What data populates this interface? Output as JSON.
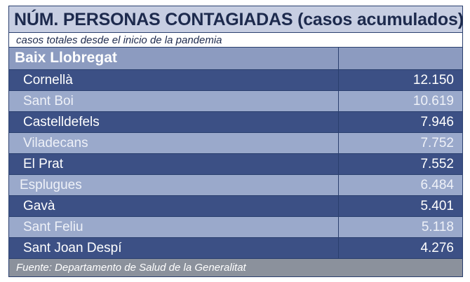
{
  "header": {
    "title": "NÚM. PERSONAS CONTAGIADAS (casos acumulados)",
    "subtitle": "casos totales desde el inicio de la pandemia"
  },
  "region": {
    "name": "Baix Llobregat"
  },
  "footer": {
    "source": "Fuente: Departamento de Salud de la Generalitat"
  },
  "colors": {
    "dark_row": "#3c5085",
    "light_row": "#9aa9cb",
    "region_row": "#8c9bc0",
    "title_bg": "#c7cee2",
    "footer_bg": "#8b919c",
    "text_dark": "#1d2a4d"
  },
  "chart_data": {
    "type": "table",
    "title": "NÚM. PERSONAS CONTAGIADAS (casos acumulados)",
    "subtitle": "casos totales desde el inicio de la pandemia",
    "group": "Baix Llobregat",
    "categories": [
      "Cornellà",
      "Sant Boi",
      "Castelldefels",
      "Viladecans",
      "El Prat",
      "Esplugues",
      "Gavà",
      "Sant Feliu",
      "Sant Joan Despí"
    ],
    "values": [
      12150,
      10619,
      7946,
      7752,
      7552,
      6484,
      5401,
      5118,
      4276
    ],
    "value_labels": [
      "12.150",
      "10.619",
      "7.946",
      "7.752",
      "7.552",
      "6.484",
      "5.401",
      "5.118",
      "4.276"
    ],
    "source": "Fuente: Departamento de Salud de la Generalitat"
  }
}
